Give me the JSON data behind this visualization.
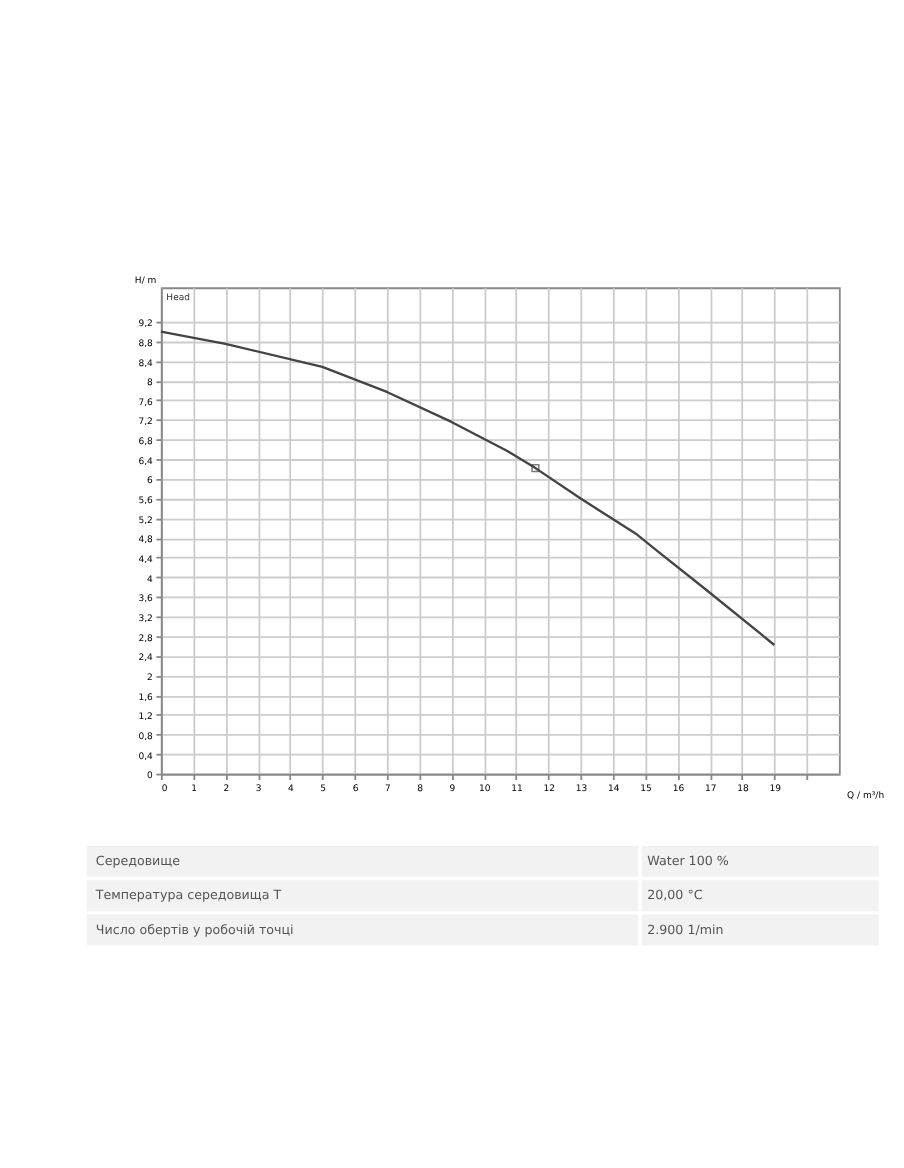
{
  "chart_data": [
    {
      "type": "line",
      "xlabel": "Q / m³/h",
      "ylabel": "H/ m",
      "annotations": [
        "Head"
      ],
      "grid": true,
      "xlim": [
        0,
        21
      ],
      "ylim": [
        0,
        9.9
      ],
      "xticks": [
        0,
        1,
        2,
        3,
        4,
        5,
        6,
        7,
        8,
        9,
        10,
        11,
        12,
        13,
        14,
        15,
        16,
        17,
        18,
        19,
        {
          "value": 20,
          "label": null
        }
      ],
      "yticks": [
        0,
        {
          "value": 0.4,
          "label": "0,4"
        },
        {
          "value": 0.8,
          "label": "0,8"
        },
        {
          "value": 1.2,
          "label": "1,2"
        },
        {
          "value": 1.6,
          "label": "1,6"
        },
        2,
        {
          "value": 2.4,
          "label": "2,4"
        },
        {
          "value": 2.8,
          "label": "2,8"
        },
        {
          "value": 3.2,
          "label": "3,2"
        },
        {
          "value": 3.6,
          "label": "3,6"
        },
        4,
        {
          "value": 4.4,
          "label": "4,4"
        },
        {
          "value": 4.8,
          "label": "4,8"
        },
        {
          "value": 5.2,
          "label": "5,2"
        },
        {
          "value": 5.6,
          "label": "5,6"
        },
        6,
        {
          "value": 6.4,
          "label": "6,4"
        },
        {
          "value": 6.8,
          "label": "6,8"
        },
        {
          "value": 7.2,
          "label": "7,2"
        },
        {
          "value": 7.6,
          "label": "7,6"
        },
        8,
        {
          "value": 8.4,
          "label": "8,4"
        },
        {
          "value": 8.8,
          "label": "8,8"
        },
        {
          "value": 9.2,
          "label": "9,2"
        }
      ],
      "series": [
        {
          "type": "line",
          "color": "#444444",
          "marker": "none",
          "x": [
            0,
            2,
            5,
            7,
            9,
            10.7,
            11.6,
            13,
            14.7,
            15.4,
            16.8,
            19
          ],
          "values": [
            9.0,
            8.75,
            8.28,
            7.77,
            7.16,
            6.58,
            6.22,
            5.6,
            4.89,
            4.52,
            3.79,
            2.62
          ]
        },
        {
          "type": "scatter",
          "color": "#444444",
          "marker": "square",
          "x": [
            11.6
          ],
          "values": [
            6.22
          ]
        }
      ]
    },
    {
      "type": "other",
      "annotations": [
        "Середовище",
        "Water 100 %",
        "Температура середовища T",
        "20,00 °C",
        "Число обертів у робочій точці",
        "2.900 1/min"
      ]
    }
  ]
}
